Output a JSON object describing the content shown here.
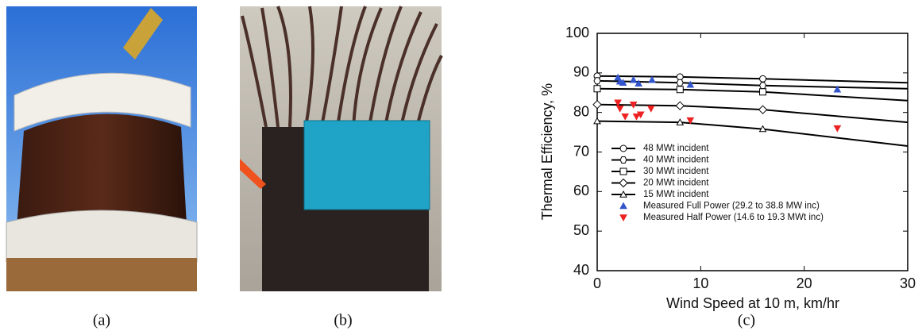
{
  "figure": {
    "labels": [
      "(a)",
      "(b)",
      "(c)"
    ]
  },
  "chart_data": {
    "type": "line",
    "xlabel": "Wind Speed at 10 m, km/hr",
    "ylabel": "Thermal Efficiency, %",
    "xlim": [
      0,
      30
    ],
    "ylim": [
      40,
      100
    ],
    "xticks": [
      0,
      10,
      20,
      30
    ],
    "yticks": [
      40,
      50,
      60,
      70,
      80,
      90,
      100
    ],
    "legend": "lower-left",
    "series": [
      {
        "name": "48 MWt incident",
        "color": "#000000",
        "marker": "circle",
        "x": [
          0,
          8,
          16,
          30
        ],
        "values": [
          89.2,
          89,
          88.5,
          87.5
        ]
      },
      {
        "name": "40 MWt incident",
        "color": "#000000",
        "marker": "hexagon",
        "x": [
          0,
          8,
          16,
          30
        ],
        "values": [
          88,
          87.5,
          86.8,
          86
        ]
      },
      {
        "name": "30 MWt incident",
        "color": "#000000",
        "marker": "square",
        "x": [
          0,
          8,
          16,
          30
        ],
        "values": [
          86,
          85.8,
          85.2,
          83
        ]
      },
      {
        "name": "20 MWt incident",
        "color": "#000000",
        "marker": "diamond",
        "x": [
          0,
          8,
          16,
          30
        ],
        "values": [
          82,
          81.7,
          80.7,
          77.5
        ]
      },
      {
        "name": "15 MWt incident",
        "color": "#000000",
        "marker": "triangle",
        "x": [
          0,
          8,
          16,
          30
        ],
        "values": [
          77.8,
          77.5,
          75.8,
          71.5
        ]
      },
      {
        "name": "Measured Full Power (29.2 to 38.8 MW inc)",
        "type": "scatter",
        "color": "#3355cc",
        "marker": "triangle",
        "x": [
          2,
          2.2,
          2.5,
          3.5,
          4,
          5.3,
          9,
          23.2
        ],
        "values": [
          88.8,
          87.8,
          87.5,
          88.2,
          87.3,
          88.2,
          87,
          85.8
        ]
      },
      {
        "name": "Measured Half Power (14.6 to 19.3 MWt inc)",
        "type": "scatter",
        "color": "#ee2222",
        "marker": "triangle-down",
        "x": [
          2,
          2.2,
          2.7,
          3.5,
          3.8,
          4.2,
          5.2,
          9,
          23.2
        ],
        "values": [
          82.5,
          81,
          79,
          82,
          79,
          79.5,
          81,
          78,
          76
        ]
      }
    ]
  }
}
